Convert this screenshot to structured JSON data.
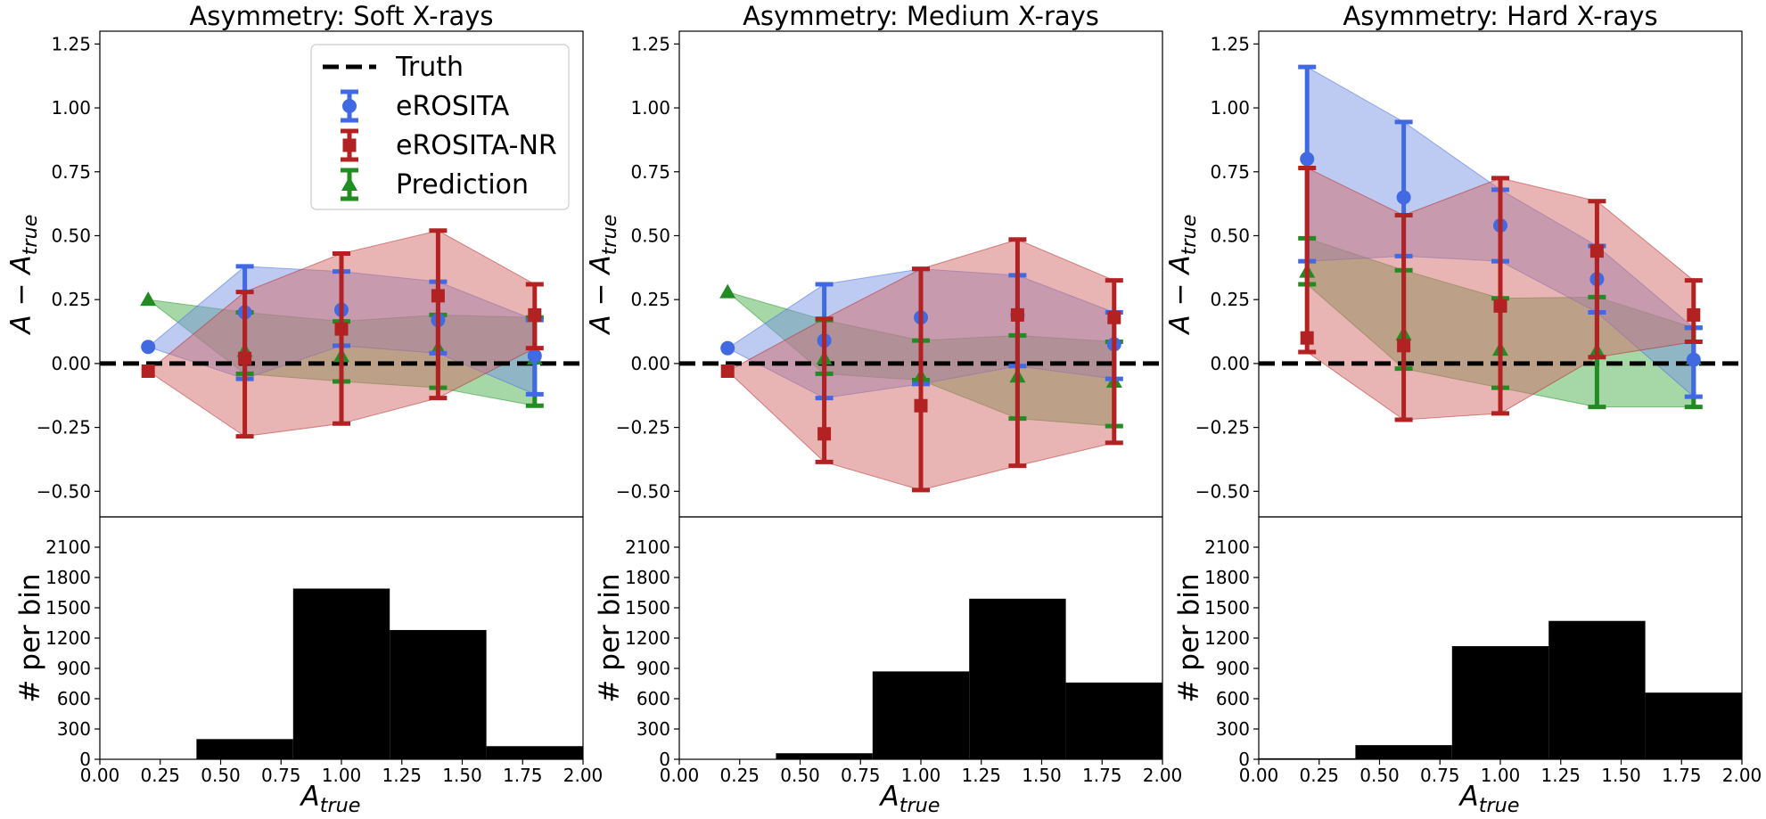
{
  "colors": {
    "erosita": "#4169e1",
    "erosita_fill": "#7b96e6",
    "erosita_nr": "#b22222",
    "erosita_nr_fill": "#d46a6a",
    "prediction": "#228b22",
    "prediction_fill": "#4caf50",
    "truth": "#000000",
    "hist": "#000000"
  },
  "legend": {
    "placement": "top-right of first panel",
    "entries": [
      {
        "label": "Truth",
        "marker": "dashed-line"
      },
      {
        "label": "eROSITA",
        "marker": "circle"
      },
      {
        "label": "eROSITA-NR",
        "marker": "square"
      },
      {
        "label": "Prediction",
        "marker": "triangle"
      }
    ]
  },
  "chart_data": [
    {
      "type": "scatter",
      "title": "Asymmetry: Soft X-rays",
      "ylabel": "A − A_true",
      "xlabel": "A_true",
      "xlim": [
        0,
        2
      ],
      "ylim": [
        -0.6,
        1.3
      ],
      "xticks": [
        "0.00",
        "0.25",
        "0.50",
        "0.75",
        "1.00",
        "1.25",
        "1.50",
        "1.75",
        "2.00"
      ],
      "yticks": [
        "−0.50",
        "−0.25",
        "0.00",
        "0.25",
        "0.50",
        "0.75",
        "1.00",
        "1.25"
      ],
      "truth_y": 0,
      "series": [
        {
          "name": "eROSITA",
          "x": [
            0.2,
            0.6,
            1.0,
            1.4,
            1.8
          ],
          "y": [
            0.065,
            0.2,
            0.21,
            0.17,
            0.03
          ],
          "lo": [
            0.065,
            -0.06,
            0.07,
            0.04,
            -0.12
          ],
          "hi": [
            0.065,
            0.38,
            0.36,
            0.32,
            0.17
          ]
        },
        {
          "name": "eROSITA-NR",
          "x": [
            0.2,
            0.6,
            1.0,
            1.4,
            1.8
          ],
          "y": [
            -0.03,
            0.02,
            0.135,
            0.265,
            0.19
          ],
          "lo": [
            -0.03,
            -0.285,
            -0.235,
            -0.135,
            0.06
          ],
          "hi": [
            -0.03,
            0.28,
            0.43,
            0.52,
            0.31
          ]
        },
        {
          "name": "Prediction",
          "x": [
            0.2,
            0.6,
            1.0,
            1.4,
            1.8
          ],
          "y": [
            0.25,
            0.05,
            0.03,
            0.06,
            0.02
          ],
          "lo": [
            0.25,
            -0.04,
            -0.07,
            -0.095,
            -0.165
          ],
          "hi": [
            0.25,
            0.2,
            0.165,
            0.19,
            0.18
          ]
        }
      ],
      "hist": {
        "ylabel": "# per bin",
        "ylim": [
          0,
          2400
        ],
        "yticks": [
          "0",
          "300",
          "600",
          "900",
          "1200",
          "1500",
          "1800",
          "2100"
        ],
        "bin_edges": [
          0.0,
          0.4,
          0.8,
          1.2,
          1.6,
          2.0
        ],
        "counts": [
          0,
          200,
          1690,
          1280,
          130
        ]
      }
    },
    {
      "type": "scatter",
      "title": "Asymmetry: Medium X-rays",
      "ylabel": "A − A_true",
      "xlabel": "A_true",
      "xlim": [
        0,
        2
      ],
      "ylim": [
        -0.6,
        1.3
      ],
      "xticks": [
        "0.00",
        "0.25",
        "0.50",
        "0.75",
        "1.00",
        "1.25",
        "1.50",
        "1.75",
        "2.00"
      ],
      "yticks": [
        "−0.50",
        "−0.25",
        "0.00",
        "0.25",
        "0.50",
        "0.75",
        "1.00",
        "1.25"
      ],
      "truth_y": 0,
      "series": [
        {
          "name": "eROSITA",
          "x": [
            0.2,
            0.6,
            1.0,
            1.4,
            1.8
          ],
          "y": [
            0.06,
            0.09,
            0.18,
            0.19,
            0.075
          ],
          "lo": [
            0.06,
            -0.135,
            -0.08,
            -0.01,
            -0.06
          ],
          "hi": [
            0.06,
            0.31,
            0.37,
            0.345,
            0.2
          ]
        },
        {
          "name": "eROSITA-NR",
          "x": [
            0.2,
            0.6,
            1.0,
            1.4,
            1.8
          ],
          "y": [
            -0.03,
            -0.275,
            -0.165,
            0.19,
            0.18
          ],
          "lo": [
            -0.03,
            -0.385,
            -0.495,
            -0.4,
            -0.31
          ],
          "hi": [
            -0.03,
            0.175,
            0.37,
            0.485,
            0.325
          ]
        },
        {
          "name": "Prediction",
          "x": [
            0.2,
            0.6,
            1.0,
            1.4,
            1.8
          ],
          "y": [
            0.28,
            0.02,
            -0.05,
            -0.05,
            -0.07
          ],
          "lo": [
            0.28,
            -0.04,
            -0.065,
            -0.215,
            -0.245
          ],
          "hi": [
            0.28,
            0.17,
            0.09,
            0.11,
            0.085
          ]
        }
      ],
      "hist": {
        "ylabel": "# per bin",
        "ylim": [
          0,
          2400
        ],
        "yticks": [
          "0",
          "300",
          "600",
          "900",
          "1200",
          "1500",
          "1800",
          "2100"
        ],
        "bin_edges": [
          0.0,
          0.4,
          0.8,
          1.2,
          1.6,
          2.0
        ],
        "counts": [
          0,
          60,
          870,
          1590,
          760
        ]
      }
    },
    {
      "type": "scatter",
      "title": "Asymmetry: Hard X-rays",
      "ylabel": "A − A_true",
      "xlabel": "A_true",
      "xlim": [
        0,
        2
      ],
      "ylim": [
        -0.6,
        1.3
      ],
      "xticks": [
        "0.00",
        "0.25",
        "0.50",
        "0.75",
        "1.00",
        "1.25",
        "1.50",
        "1.75",
        "2.00"
      ],
      "yticks": [
        "−0.50",
        "−0.25",
        "0.00",
        "0.25",
        "0.50",
        "0.75",
        "1.00",
        "1.25"
      ],
      "truth_y": 0,
      "series": [
        {
          "name": "eROSITA",
          "x": [
            0.2,
            0.6,
            1.0,
            1.4,
            1.8
          ],
          "y": [
            0.8,
            0.65,
            0.54,
            0.33,
            0.015
          ],
          "lo": [
            0.4,
            0.42,
            0.4,
            0.2,
            -0.13
          ],
          "hi": [
            1.16,
            0.945,
            0.68,
            0.46,
            0.14
          ]
        },
        {
          "name": "eROSITA-NR",
          "x": [
            0.2,
            0.6,
            1.0,
            1.4,
            1.8
          ],
          "y": [
            0.1,
            0.07,
            0.225,
            0.44,
            0.19
          ],
          "lo": [
            0.045,
            -0.22,
            -0.195,
            0.025,
            0.085
          ],
          "hi": [
            0.765,
            0.58,
            0.725,
            0.635,
            0.325
          ]
        },
        {
          "name": "Prediction",
          "x": [
            0.2,
            0.6,
            1.0,
            1.4,
            1.8
          ],
          "y": [
            0.36,
            0.115,
            0.055,
            0.05,
            0.02
          ],
          "lo": [
            0.31,
            -0.02,
            -0.095,
            -0.17,
            -0.17
          ],
          "hi": [
            0.49,
            0.365,
            0.255,
            0.26,
            0.14
          ]
        }
      ],
      "hist": {
        "ylabel": "# per bin",
        "ylim": [
          0,
          2400
        ],
        "yticks": [
          "0",
          "300",
          "600",
          "900",
          "1200",
          "1500",
          "1800",
          "2100"
        ],
        "bin_edges": [
          0.0,
          0.4,
          0.8,
          1.2,
          1.6,
          2.0
        ],
        "counts": [
          10,
          140,
          1120,
          1370,
          660
        ]
      }
    }
  ]
}
